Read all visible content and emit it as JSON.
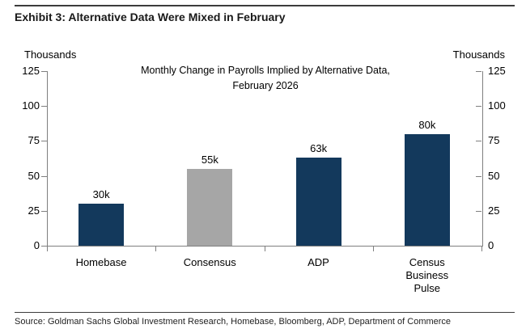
{
  "header": {
    "title": "Exhibit 3: Alternative Data Were Mixed in February"
  },
  "source": {
    "text": "Source: Goldman Sachs Global Investment Research, Homebase, Bloomberg, ADP, Department of Commerce"
  },
  "chart_data": {
    "type": "bar",
    "title_line1": "Monthly Change in Payrolls Implied by Alternative Data,",
    "title_line2": "February 2026",
    "axis_unit_left": "Thousands",
    "axis_unit_right": "Thousands",
    "categories": [
      "Homebase",
      "Consensus",
      "ADP",
      "Census\nBusiness\nPulse"
    ],
    "values": [
      30,
      55,
      63,
      80
    ],
    "value_labels": [
      "30k",
      "55k",
      "63k",
      "80k"
    ],
    "series": [
      {
        "name": "Monthly change in payrolls",
        "values": [
          30,
          55,
          63,
          80
        ]
      }
    ],
    "bar_colors": [
      "#13395C",
      "#A6A6A6",
      "#13395C",
      "#13395C"
    ],
    "ylim": [
      0,
      125
    ],
    "yticks": [
      0,
      25,
      50,
      75,
      100,
      125
    ],
    "grid": false,
    "legend": "none",
    "axis_color": "#7F7F7F"
  },
  "colors": {
    "navy": "#13395C",
    "gray": "#A6A6A6",
    "axis": "#7F7F7F",
    "rule": "#3C3C3C",
    "text": "#000000"
  }
}
